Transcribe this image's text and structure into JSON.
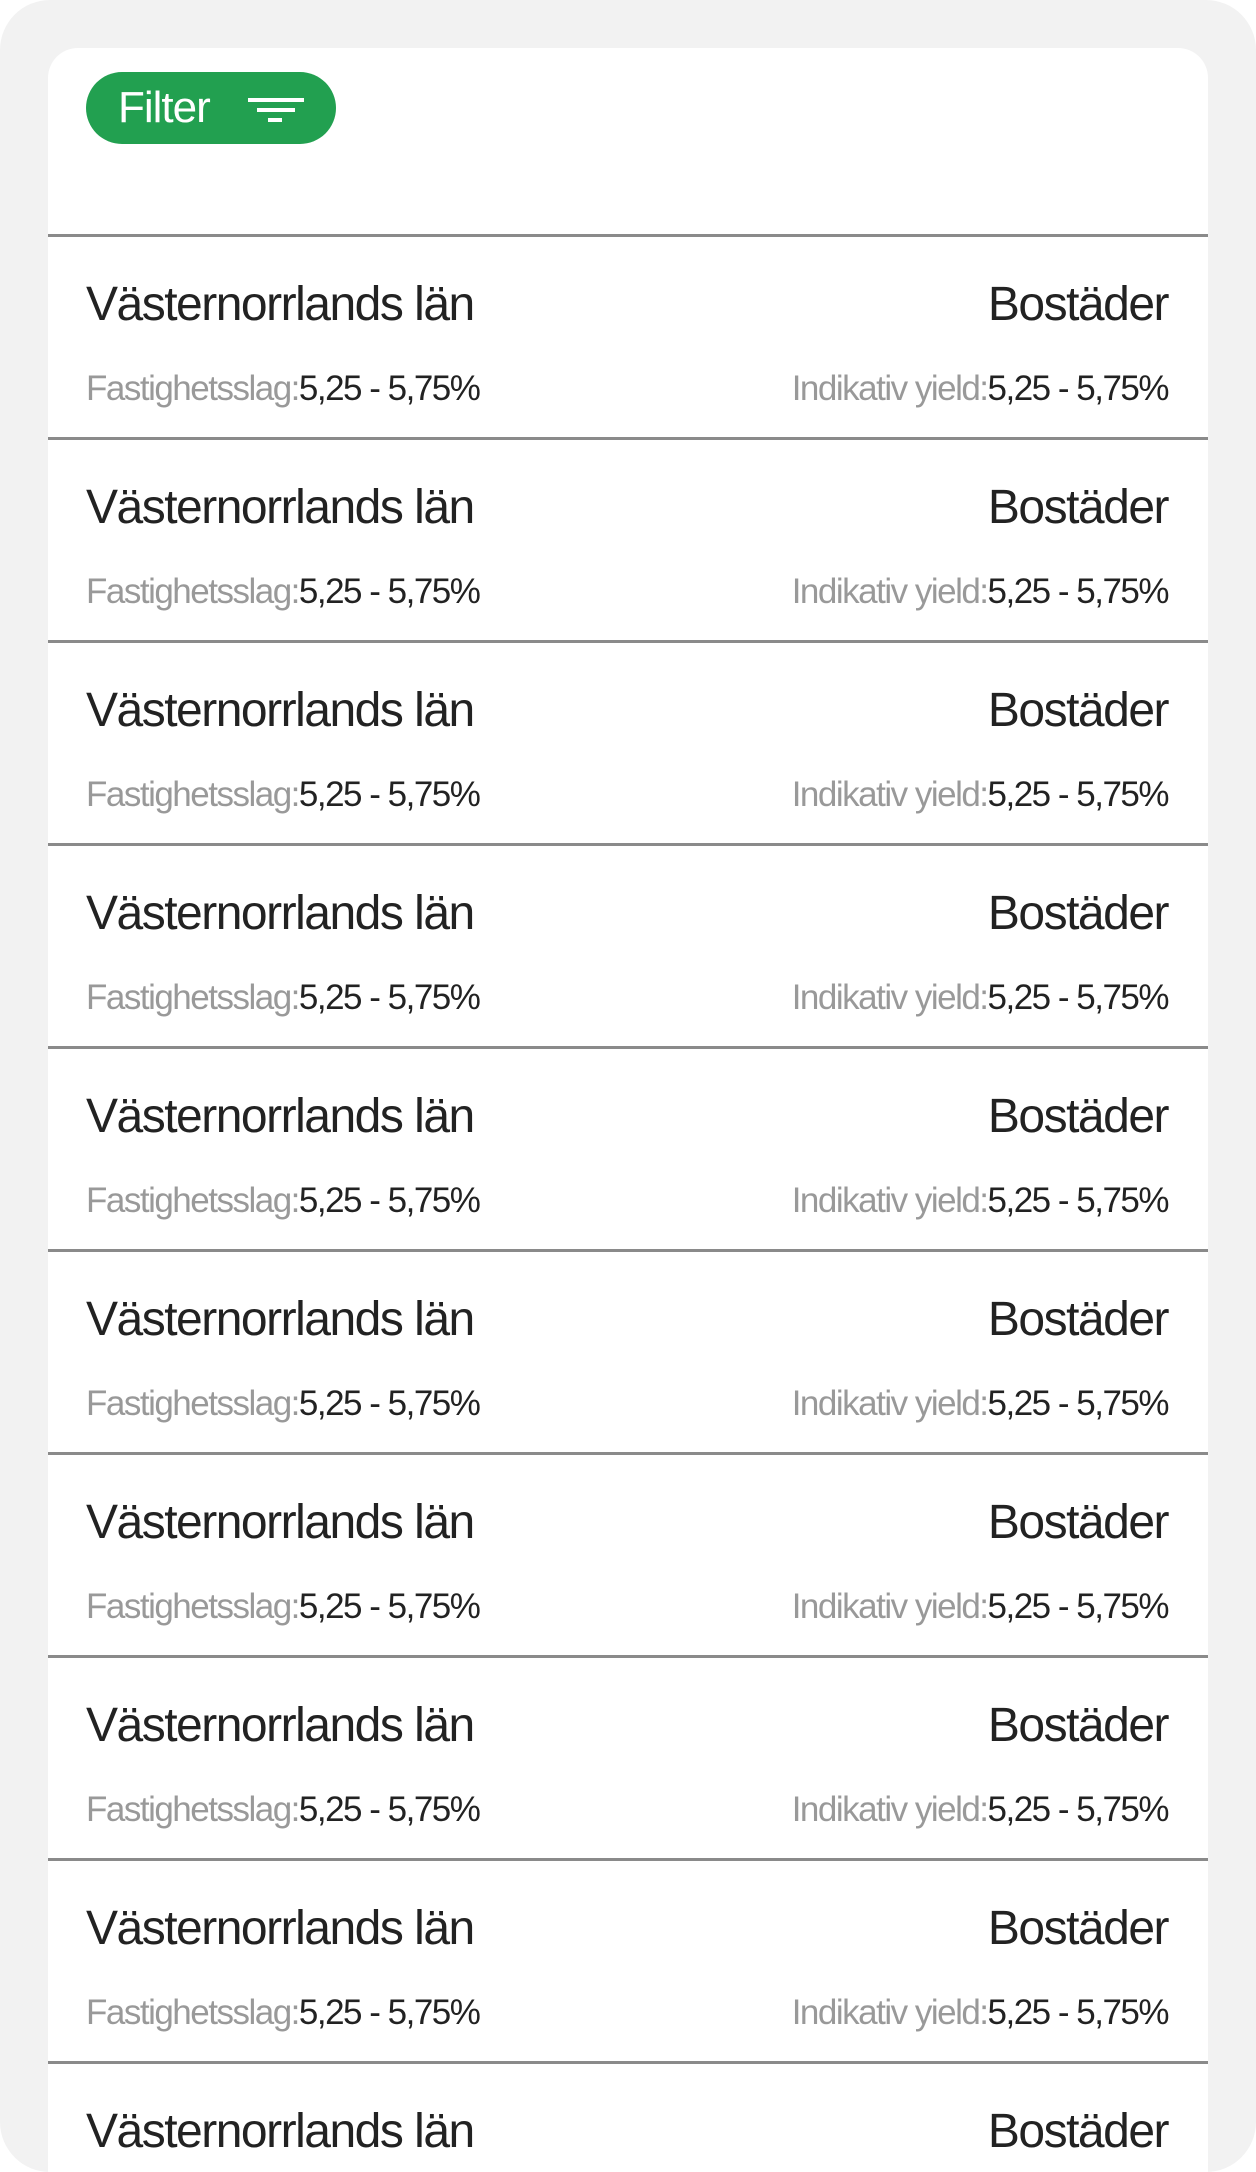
{
  "filter_button": {
    "label": "Filter",
    "icon": "filter-icon",
    "color": "#22a050"
  },
  "items": [
    {
      "title": "Västernorrlands län",
      "type": "Bostäder",
      "left_label": "Fastighetsslag:",
      "left_value": "5,25 - 5,75%",
      "right_label": "Indikativ yield:",
      "right_value": "5,25 - 5,75%"
    },
    {
      "title": "Västernorrlands län",
      "type": "Bostäder",
      "left_label": "Fastighetsslag:",
      "left_value": "5,25 - 5,75%",
      "right_label": "Indikativ yield:",
      "right_value": "5,25 - 5,75%"
    },
    {
      "title": "Västernorrlands län",
      "type": "Bostäder",
      "left_label": "Fastighetsslag:",
      "left_value": "5,25 - 5,75%",
      "right_label": "Indikativ yield:",
      "right_value": "5,25 - 5,75%"
    },
    {
      "title": "Västernorrlands län",
      "type": "Bostäder",
      "left_label": "Fastighetsslag:",
      "left_value": "5,25 - 5,75%",
      "right_label": "Indikativ yield:",
      "right_value": "5,25 - 5,75%"
    },
    {
      "title": "Västernorrlands län",
      "type": "Bostäder",
      "left_label": "Fastighetsslag:",
      "left_value": "5,25 - 5,75%",
      "right_label": "Indikativ yield:",
      "right_value": "5,25 - 5,75%"
    },
    {
      "title": "Västernorrlands län",
      "type": "Bostäder",
      "left_label": "Fastighetsslag:",
      "left_value": "5,25 - 5,75%",
      "right_label": "Indikativ yield:",
      "right_value": "5,25 - 5,75%"
    },
    {
      "title": "Västernorrlands län",
      "type": "Bostäder",
      "left_label": "Fastighetsslag:",
      "left_value": "5,25 - 5,75%",
      "right_label": "Indikativ yield:",
      "right_value": "5,25 - 5,75%"
    },
    {
      "title": "Västernorrlands län",
      "type": "Bostäder",
      "left_label": "Fastighetsslag:",
      "left_value": "5,25 - 5,75%",
      "right_label": "Indikativ yield:",
      "right_value": "5,25 - 5,75%"
    },
    {
      "title": "Västernorrlands län",
      "type": "Bostäder",
      "left_label": "Fastighetsslag:",
      "left_value": "5,25 - 5,75%",
      "right_label": "Indikativ yield:",
      "right_value": "5,25 - 5,75%"
    },
    {
      "title": "Västernorrlands län",
      "type": "Bostäder"
    }
  ]
}
